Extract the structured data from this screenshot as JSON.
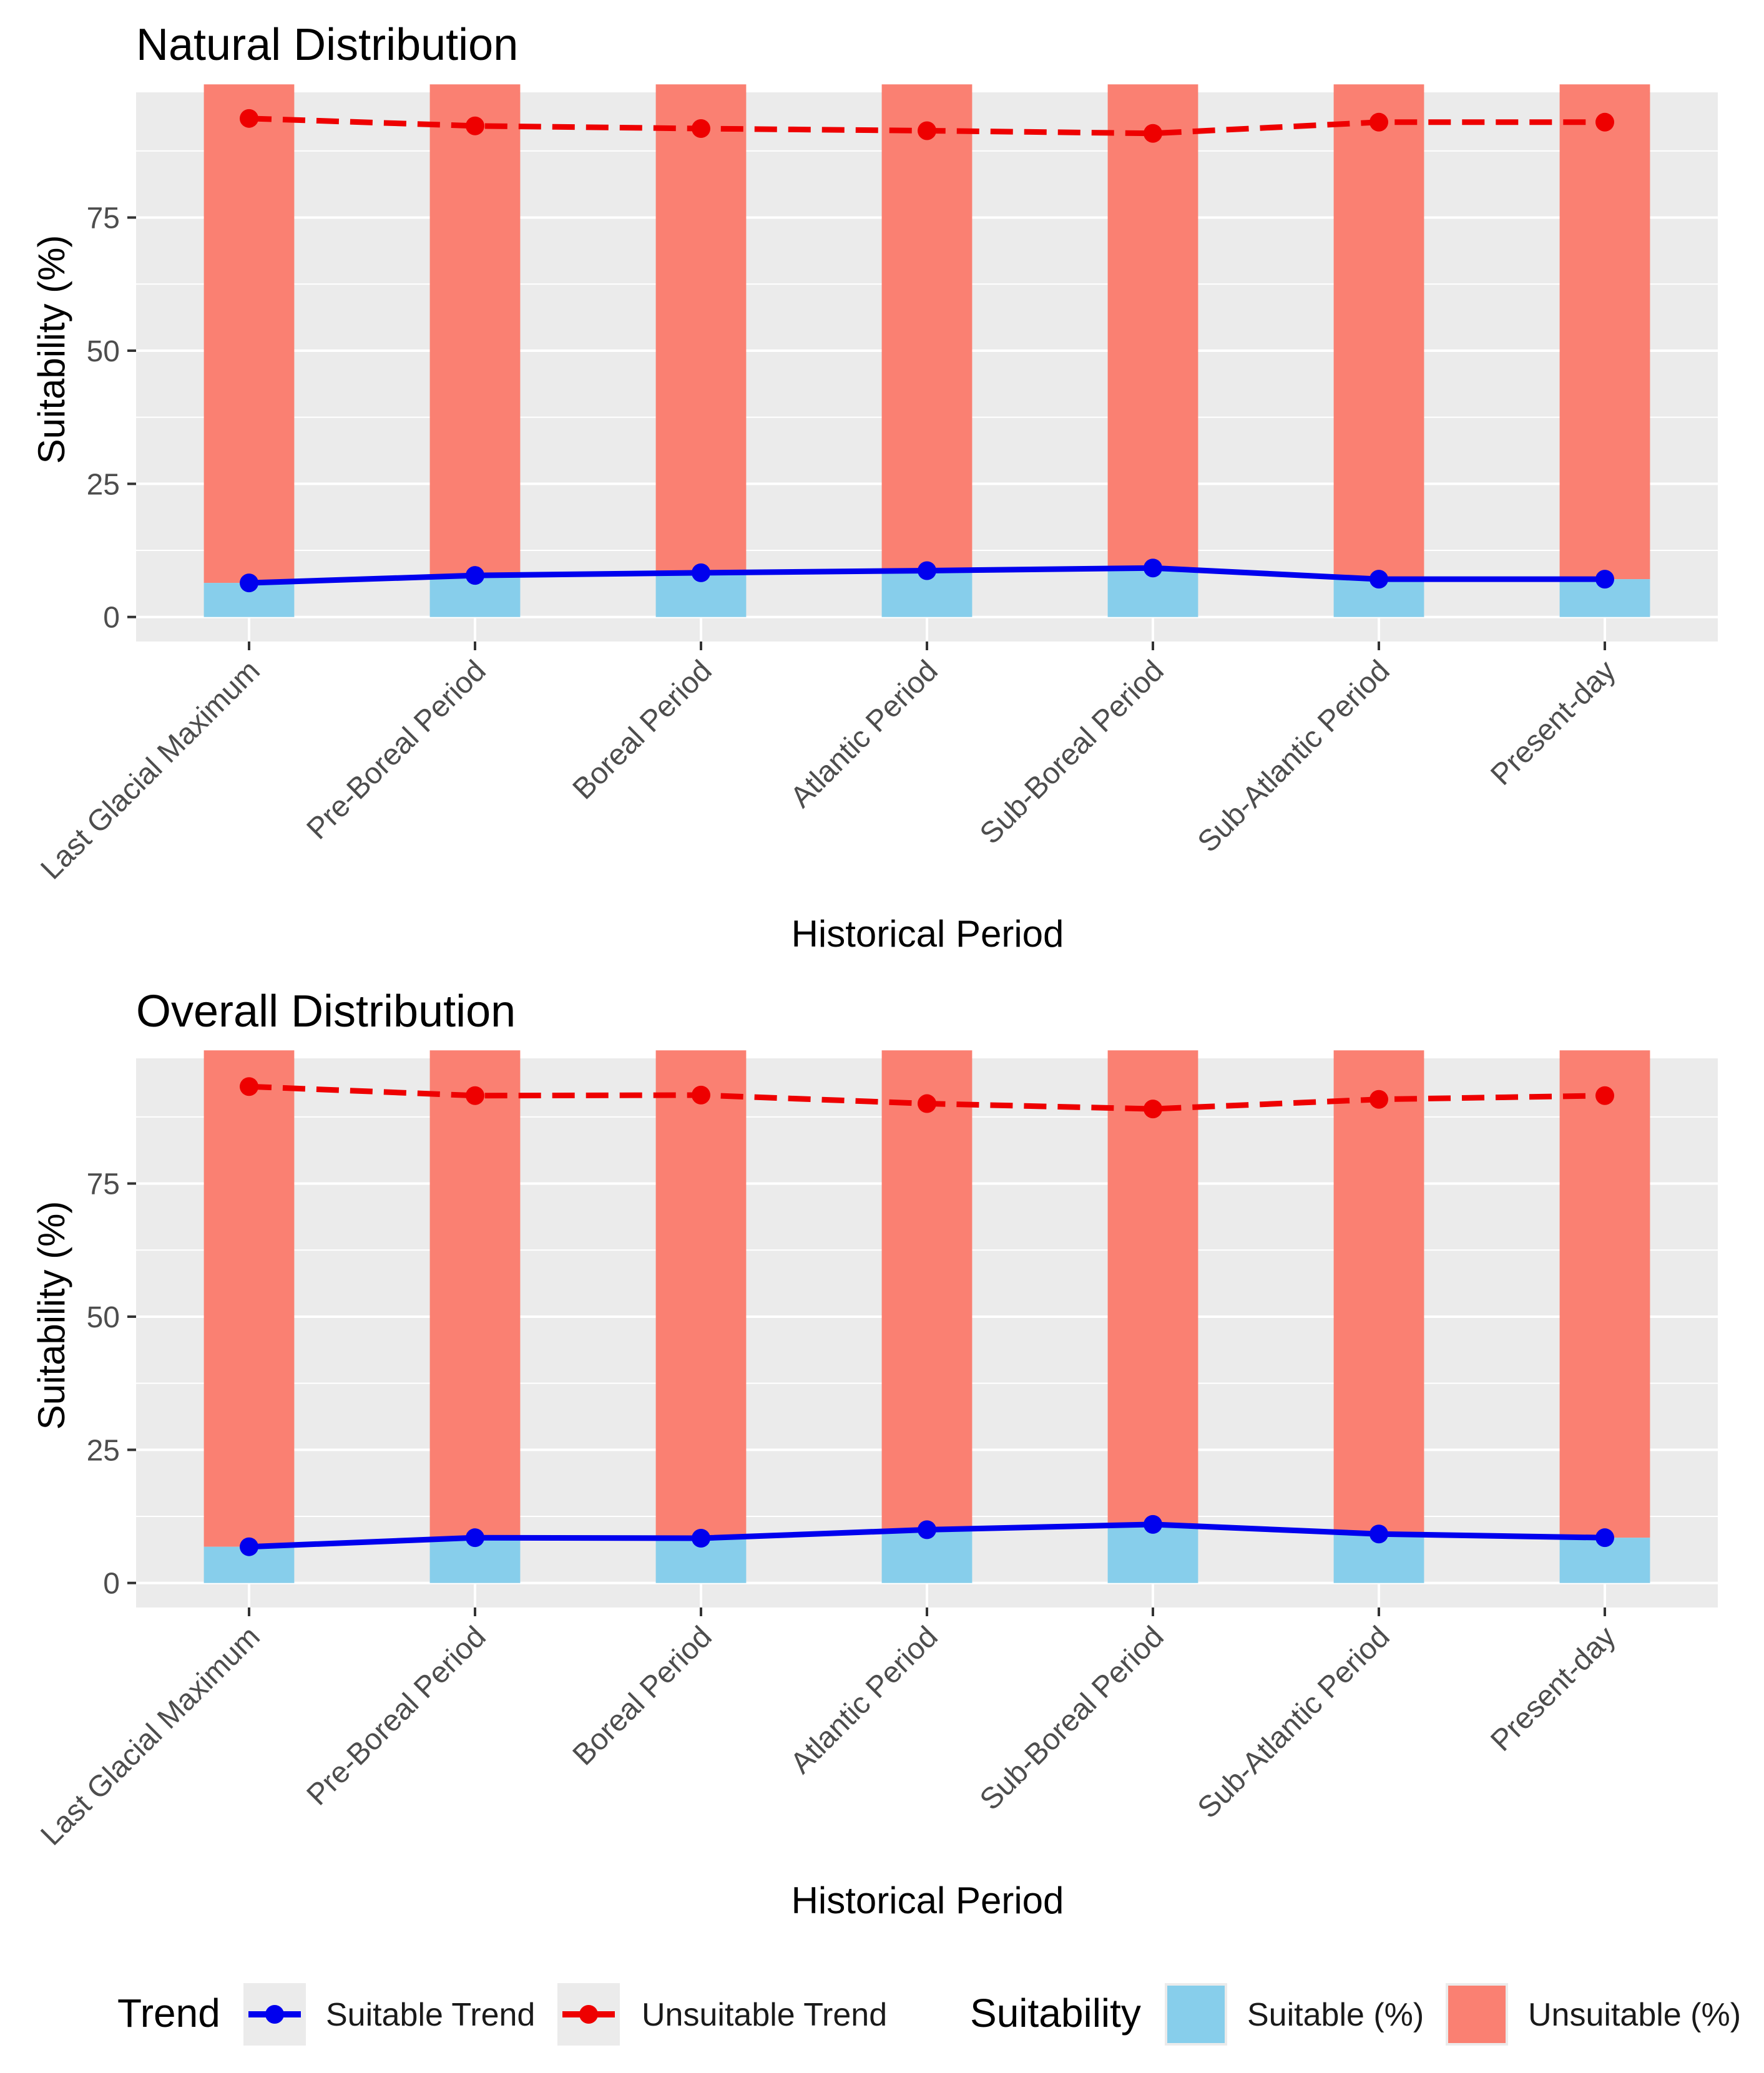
{
  "colors": {
    "panel_bg": "#EBEBEB",
    "grid": "#FFFFFF",
    "suitable_fill": "#87CEEB",
    "unsuitable_fill": "#FA8072",
    "suitable_trend": "#0000EE",
    "unsuitable_trend": "#EE0000",
    "tick": "#333333"
  },
  "legend": {
    "trend_title": "Trend",
    "trend_items": [
      "Suitable Trend",
      "Unsuitable Trend"
    ],
    "suitability_title": "Suitability",
    "suitability_items": [
      "Suitable (%)",
      "Unsuitable (%)"
    ]
  },
  "chart_data": [
    {
      "type": "bar",
      "title": "Natural Distribution",
      "xlabel": "Historical Period",
      "ylabel": "Suitability (%)",
      "ylim": [
        -4.6,
        98.5
      ],
      "yticks": [
        0,
        25,
        50,
        75
      ],
      "categories": [
        "Last Glacial Maximum",
        "Pre-Boreal Period",
        "Boreal Period",
        "Atlantic Period",
        "Sub-Boreal Period",
        "Sub-Atlantic Period",
        "Present-day"
      ],
      "series": [
        {
          "name": "Suitable (%)",
          "kind": "bar",
          "values": [
            6.4,
            7.8,
            8.3,
            8.7,
            9.2,
            7.1,
            7.1
          ]
        },
        {
          "name": "Unsuitable (%)",
          "kind": "bar",
          "values": [
            93.6,
            92.2,
            91.7,
            91.3,
            90.8,
            92.9,
            92.9
          ]
        },
        {
          "name": "Suitable Trend",
          "kind": "line",
          "values": [
            6.4,
            7.8,
            8.3,
            8.7,
            9.2,
            7.1,
            7.1
          ]
        },
        {
          "name": "Unsuitable Trend",
          "kind": "line",
          "values": [
            93.6,
            92.2,
            91.7,
            91.3,
            90.8,
            92.9,
            92.9
          ]
        }
      ]
    },
    {
      "type": "bar",
      "title": "Overall Distribution",
      "xlabel": "Historical Period",
      "ylabel": "Suitability (%)",
      "ylim": [
        -4.6,
        98.5
      ],
      "yticks": [
        0,
        25,
        50,
        75
      ],
      "categories": [
        "Last Glacial Maximum",
        "Pre-Boreal Period",
        "Boreal Period",
        "Atlantic Period",
        "Sub-Boreal Period",
        "Sub-Atlantic Period",
        "Present-day"
      ],
      "series": [
        {
          "name": "Suitable (%)",
          "kind": "bar",
          "values": [
            6.8,
            8.5,
            8.4,
            10.0,
            11.0,
            9.2,
            8.5
          ]
        },
        {
          "name": "Unsuitable (%)",
          "kind": "bar",
          "values": [
            93.2,
            91.5,
            91.6,
            90.0,
            89.0,
            90.8,
            91.5
          ]
        },
        {
          "name": "Suitable Trend",
          "kind": "line",
          "values": [
            6.8,
            8.5,
            8.4,
            10.0,
            11.0,
            9.2,
            8.5
          ]
        },
        {
          "name": "Unsuitable Trend",
          "kind": "line",
          "values": [
            93.2,
            91.5,
            91.6,
            90.0,
            89.0,
            90.8,
            91.5
          ]
        }
      ]
    }
  ]
}
